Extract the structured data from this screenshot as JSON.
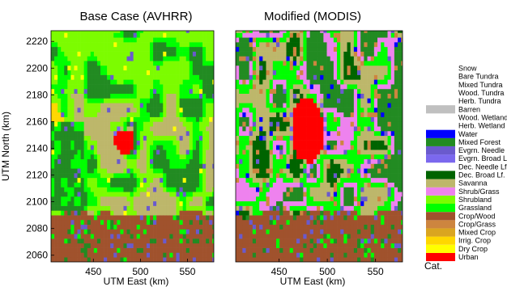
{
  "chart_data": [
    {
      "type": "heatmap",
      "title": "Base Case (AVHRR)",
      "xlabel": "UTM East (km)",
      "ylabel": "UTM North (km)",
      "xlim": [
        405,
        578
      ],
      "ylim": [
        2055,
        2228
      ],
      "xticks": [
        450,
        500,
        550
      ],
      "yticks": [
        2060,
        2080,
        2100,
        2120,
        2140,
        2160,
        2180,
        2200,
        2220
      ],
      "grid": false,
      "urban_extent_km": {
        "x": [
          472,
          495
        ],
        "y": [
          2136,
          2155
        ]
      }
    },
    {
      "type": "heatmap",
      "title": "Modified (MODIS)",
      "xlabel": "UTM East (km)",
      "xlim": [
        405,
        578
      ],
      "ylim": [
        2055,
        2228
      ],
      "xticks": [
        450,
        500,
        550
      ],
      "grid": false,
      "urban_extent_km": {
        "x": [
          462,
          498
        ],
        "y": [
          2128,
          2180
        ]
      }
    }
  ],
  "legend": {
    "title": "Cat.",
    "placement": "right",
    "categories": [
      {
        "label": "Urban",
        "color": "#ff0000"
      },
      {
        "label": "Dry Crop",
        "color": "#ffff00"
      },
      {
        "label": "Irrig. Crop",
        "color": "#ffd700"
      },
      {
        "label": "Mixed Crop",
        "color": "#daa520"
      },
      {
        "label": "Crop/Grass",
        "color": "#cd853f"
      },
      {
        "label": "Crop/Wood",
        "color": "#a0522d"
      },
      {
        "label": "Grassland",
        "color": "#00ff00"
      },
      {
        "label": "Shrubland",
        "color": "#7cfc00"
      },
      {
        "label": "Shrub/Grass",
        "color": "#ee82ee"
      },
      {
        "label": "Savanna",
        "color": "#bdb76b"
      },
      {
        "label": "Dec. Broad Lf.",
        "color": "#006400"
      },
      {
        "label": "Dec. Needle Lf.",
        "color": "#ffffff"
      },
      {
        "label": "Evgrn. Broad Lf.",
        "color": "#7b68ee"
      },
      {
        "label": "Evgrn. Needle Lf.",
        "color": "#6a5acd"
      },
      {
        "label": "Mixed Forest",
        "color": "#228b22"
      },
      {
        "label": "Water",
        "color": "#0000ff"
      },
      {
        "label": "Herb. Wetland",
        "color": "#ffffff"
      },
      {
        "label": "Wood. Wetland",
        "color": "#ffffff"
      },
      {
        "label": "Barren",
        "color": "#c0c0c0"
      },
      {
        "label": "Herb. Tundra",
        "color": "#ffffff"
      },
      {
        "label": "Wood. Tundra",
        "color": "#ffffff"
      },
      {
        "label": "Mixed Tundra",
        "color": "#ffffff"
      },
      {
        "label": "Bare Tundra",
        "color": "#ffffff"
      },
      {
        "label": "Snow",
        "color": "#ffffff"
      }
    ]
  }
}
